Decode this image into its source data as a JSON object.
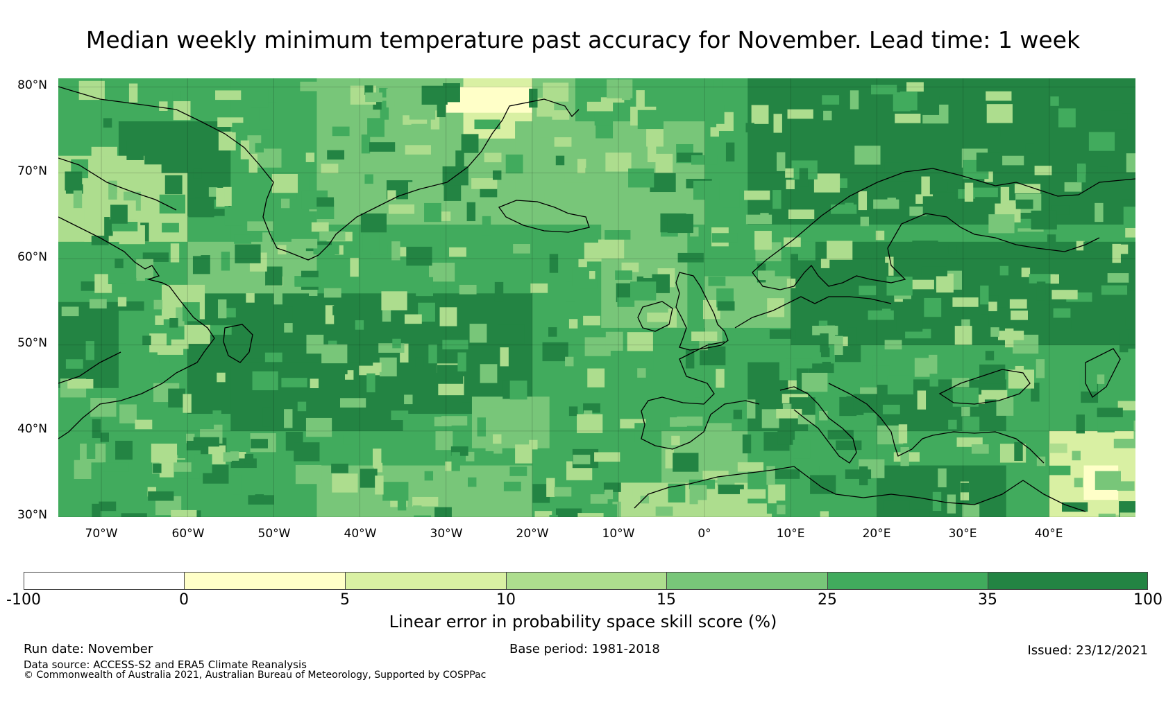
{
  "title": "Median weekly minimum temperature past accuracy for November. Lead time: 1 week",
  "map": {
    "lon_range": [
      -75,
      50
    ],
    "lat_range": [
      30,
      81
    ],
    "lat_labels": [
      "80°N",
      "70°N",
      "60°N",
      "50°N",
      "40°N",
      "30°N"
    ],
    "lat_values": [
      80,
      70,
      60,
      50,
      40,
      30
    ],
    "lon_labels": [
      "70°W",
      "60°W",
      "50°W",
      "40°W",
      "30°W",
      "20°W",
      "10°W",
      "0°",
      "10°E",
      "20°E",
      "30°E",
      "40°E"
    ],
    "lon_values": [
      -70,
      -60,
      -50,
      -40,
      -30,
      -20,
      -10,
      0,
      10,
      20,
      30,
      40
    ]
  },
  "colorbar": {
    "ticks": [
      "-100",
      "0",
      "5",
      "10",
      "15",
      "25",
      "35",
      "100"
    ],
    "colors": [
      "#ffffff",
      "#ffffc8",
      "#d9f0a3",
      "#addd8e",
      "#78c679",
      "#41ab5d",
      "#238443"
    ],
    "label": "Linear error in probability space skill score (%)"
  },
  "footer": {
    "run_date": "Run date: November",
    "base_period": "Base period: 1981-2018",
    "issued": "Issued: 23/12/2021",
    "data_source": "Data source: ACCESS-S2 and ERA5 Climate Reanalysis",
    "copyright": "© Commonwealth of Australia 2021, Australian Bureau of Meteorology, Supported by COSPPac"
  }
}
